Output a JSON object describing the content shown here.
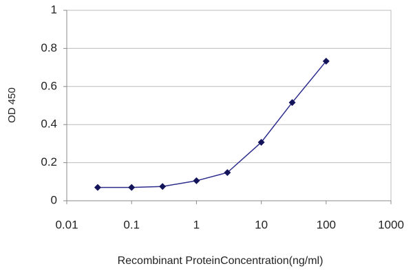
{
  "chart_data": {
    "type": "line",
    "xlabel": "Recombinant ProteinConcentration(ng/ml)",
    "ylabel": "OD 450",
    "xscale": "log",
    "x": [
      0.03,
      0.1,
      0.3,
      1,
      3,
      10,
      30,
      100
    ],
    "series": [
      {
        "color": "#2b2b8c",
        "values": [
          0.07,
          0.07,
          0.075,
          0.105,
          0.148,
          0.307,
          0.516,
          0.733
        ]
      }
    ],
    "xlim": [
      0.01,
      1000
    ],
    "xticks": [
      0.01,
      0.1,
      1,
      10,
      100,
      1000
    ],
    "ylim": [
      0,
      1
    ],
    "yticks": [
      0,
      0.2,
      0.4,
      0.6,
      0.8,
      1
    ],
    "grid": true
  }
}
